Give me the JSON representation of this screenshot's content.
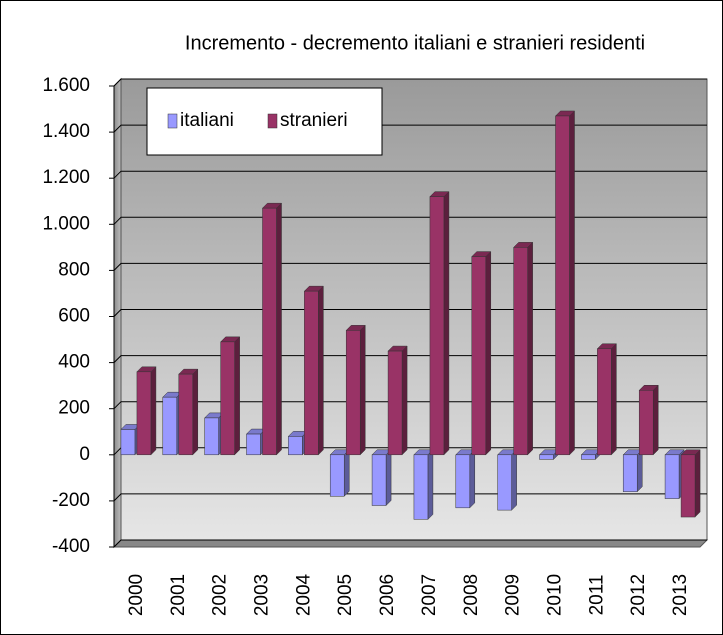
{
  "chart_data": {
    "type": "bar",
    "title": "Incremento - decremento italiani e stranieri residenti",
    "categories": [
      "2000",
      "2001",
      "2002",
      "2003",
      "2004",
      "2005",
      "2006",
      "2007",
      "2008",
      "2009",
      "2010",
      "2011",
      "2012",
      "2013"
    ],
    "series": [
      {
        "name": "italiani",
        "color": "#9999ff",
        "values": [
          110,
          250,
          160,
          90,
          80,
          -180,
          -220,
          -280,
          -230,
          -240,
          -20,
          -20,
          -160,
          -190
        ]
      },
      {
        "name": "stranieri",
        "color": "#993366",
        "values": [
          360,
          350,
          490,
          1070,
          710,
          540,
          450,
          1120,
          860,
          900,
          1470,
          460,
          280,
          -270
        ]
      }
    ],
    "ylim": [
      -400,
      1600
    ],
    "yticks": [
      -400,
      -200,
      0,
      200,
      400,
      600,
      800,
      {
        "value": 1000,
        "label": "1.000"
      },
      {
        "value": 1200,
        "label": "1.200"
      },
      {
        "value": 1400,
        "label": "1.400"
      },
      {
        "value": 1600,
        "label": "1.600"
      }
    ],
    "grid": true,
    "legend": "top-left"
  }
}
